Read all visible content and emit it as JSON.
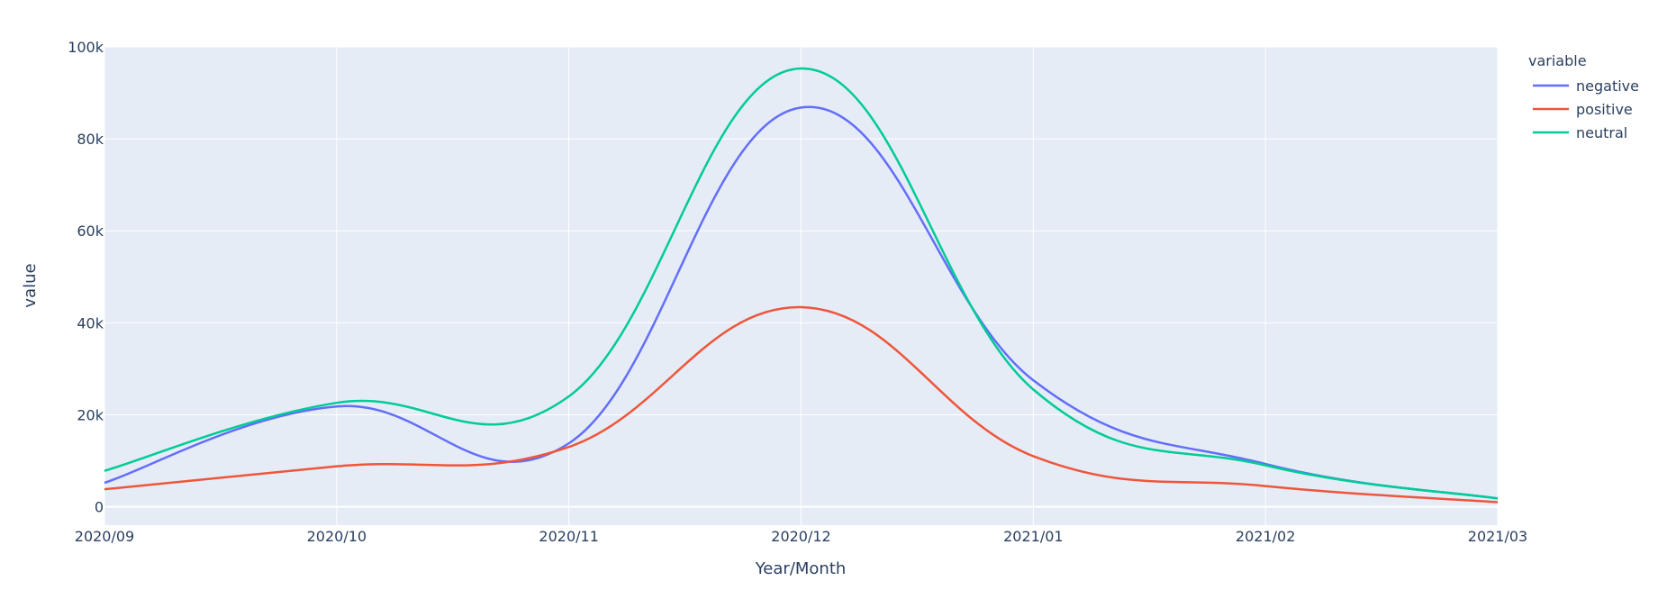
{
  "chart_data": {
    "type": "line",
    "xlabel": "Year/Month",
    "ylabel": "value",
    "x": [
      "2020/09",
      "2020/10",
      "2020/11",
      "2020/12",
      "2021/01",
      "2021/02",
      "2021/03"
    ],
    "x_tick_labels": [
      "2020/09",
      "2020/10",
      "2020/11",
      "2020/12",
      "2021/01",
      "2021/02",
      "2021/03"
    ],
    "y_tick_values": [
      0,
      20000,
      40000,
      60000,
      80000,
      100000
    ],
    "y_tick_labels": [
      "0",
      "20k",
      "40k",
      "60k",
      "80k",
      "100k"
    ],
    "ylim": [
      -4000,
      100000
    ],
    "line_shape": "spline",
    "grid": true,
    "legend": {
      "title": "variable",
      "placement": "top-right"
    },
    "plot_background": "#e5ecf6",
    "series": [
      {
        "name": "negative",
        "color": "#636efa",
        "values": [
          5200,
          21800,
          13800,
          86800,
          27500,
          9300,
          1800
        ]
      },
      {
        "name": "positive",
        "color": "#ef553b",
        "values": [
          3800,
          8800,
          13000,
          43400,
          11000,
          4500,
          1000
        ]
      },
      {
        "name": "neutral",
        "color": "#00cc96",
        "values": [
          7800,
          22600,
          24000,
          95300,
          25500,
          9000,
          1800
        ]
      }
    ]
  }
}
